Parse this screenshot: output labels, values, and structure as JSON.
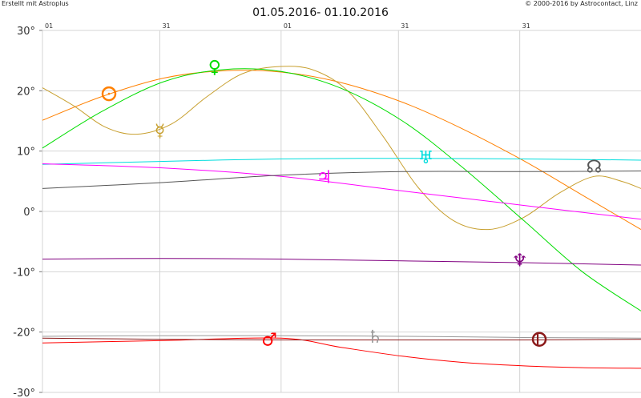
{
  "header": {
    "left_credit": "Erstellt mit Astroplus",
    "right_credit": "© 2000-2016 by Astrocontact, Linz"
  },
  "chart_data": {
    "type": "line",
    "title": "01.05.2016- 01.10.2016",
    "x_date_range": [
      "2016-05-01",
      "2016-10-01"
    ],
    "x_ticks": [
      {
        "label": "01",
        "date": "2016-05-01"
      },
      {
        "label": "31",
        "date": "2016-05-31"
      },
      {
        "label": "01",
        "date": "2016-07-01"
      },
      {
        "label": "31",
        "date": "2016-07-31"
      },
      {
        "label": "31",
        "date": "2016-08-31"
      }
    ],
    "ylim": [
      -30,
      30
    ],
    "y_ticks": [
      "30°",
      "20°",
      "10°",
      "0°",
      "-10°",
      "-20°",
      "-30°"
    ],
    "y_tick_values": [
      30,
      20,
      10,
      0,
      -10,
      -20,
      -30
    ],
    "grid": true,
    "series": [
      {
        "name": "Sun",
        "symbol": "☉",
        "color": "#ff8000",
        "points": [
          [
            "2016-05-01",
            15.1
          ],
          [
            "2016-05-16",
            19.0
          ],
          [
            "2016-06-01",
            22.1
          ],
          [
            "2016-06-16",
            23.3
          ],
          [
            "2016-07-01",
            23.1
          ],
          [
            "2016-07-16",
            21.4
          ],
          [
            "2016-08-01",
            18.1
          ],
          [
            "2016-08-16",
            13.8
          ],
          [
            "2016-09-01",
            8.4
          ],
          [
            "2016-09-16",
            2.7
          ],
          [
            "2016-10-01",
            -3.0
          ]
        ],
        "label_at": [
          "2016-05-18",
          19.5
        ]
      },
      {
        "name": "Mercury",
        "symbol": "☿",
        "color": "#c8a030",
        "points": [
          [
            "2016-05-01",
            20.5
          ],
          [
            "2016-05-09",
            17.5
          ],
          [
            "2016-05-17",
            14.0
          ],
          [
            "2016-05-25",
            12.8
          ],
          [
            "2016-06-03",
            14.5
          ],
          [
            "2016-06-12",
            19.0
          ],
          [
            "2016-06-21",
            22.8
          ],
          [
            "2016-06-30",
            24.0
          ],
          [
            "2016-07-09",
            23.5
          ],
          [
            "2016-07-18",
            20.0
          ],
          [
            "2016-07-27",
            12.5
          ],
          [
            "2016-08-05",
            4.0
          ],
          [
            "2016-08-14",
            -1.5
          ],
          [
            "2016-08-23",
            -3.0
          ],
          [
            "2016-09-01",
            -1.0
          ],
          [
            "2016-09-10",
            3.0
          ],
          [
            "2016-09-19",
            5.8
          ],
          [
            "2016-09-26",
            5.0
          ],
          [
            "2016-10-01",
            3.8
          ]
        ],
        "label_at": [
          "2016-05-31",
          13.5
        ]
      },
      {
        "name": "Venus",
        "symbol": "♀",
        "color": "#00dd00",
        "points": [
          [
            "2016-05-01",
            10.5
          ],
          [
            "2016-05-16",
            16.5
          ],
          [
            "2016-06-01",
            21.5
          ],
          [
            "2016-06-16",
            23.5
          ],
          [
            "2016-07-01",
            23.2
          ],
          [
            "2016-07-16",
            20.5
          ],
          [
            "2016-08-01",
            15.0
          ],
          [
            "2016-08-16",
            7.5
          ],
          [
            "2016-09-01",
            -1.5
          ],
          [
            "2016-09-16",
            -10.0
          ],
          [
            "2016-10-01",
            -16.5
          ]
        ],
        "label_at": [
          "2016-06-14",
          24.0
        ]
      },
      {
        "name": "Uranus",
        "symbol": "♅",
        "color": "#00dddd",
        "points": [
          [
            "2016-05-01",
            7.8
          ],
          [
            "2016-06-01",
            8.3
          ],
          [
            "2016-07-01",
            8.7
          ],
          [
            "2016-08-01",
            8.8
          ],
          [
            "2016-09-01",
            8.7
          ],
          [
            "2016-10-01",
            8.5
          ]
        ],
        "label_at": [
          "2016-08-07",
          9.0
        ]
      },
      {
        "name": "Jupiter",
        "symbol": "♃",
        "color": "#ff00ff",
        "points": [
          [
            "2016-05-01",
            7.9
          ],
          [
            "2016-06-01",
            7.2
          ],
          [
            "2016-07-01",
            5.8
          ],
          [
            "2016-08-01",
            3.4
          ],
          [
            "2016-09-01",
            1.0
          ],
          [
            "2016-10-01",
            -1.3
          ]
        ],
        "label_at": [
          "2016-07-12",
          5.8
        ]
      },
      {
        "name": "Node",
        "symbol": "☊",
        "color": "#555555",
        "points": [
          [
            "2016-05-01",
            3.8
          ],
          [
            "2016-06-01",
            4.8
          ],
          [
            "2016-07-01",
            6.0
          ],
          [
            "2016-08-01",
            6.6
          ],
          [
            "2016-09-01",
            6.6
          ],
          [
            "2016-10-01",
            6.7
          ]
        ],
        "label_at": [
          "2016-09-19",
          7.5
        ]
      },
      {
        "name": "Neptune",
        "symbol": "♆",
        "color": "#800080",
        "points": [
          [
            "2016-05-01",
            -7.9
          ],
          [
            "2016-06-01",
            -7.8
          ],
          [
            "2016-07-01",
            -7.9
          ],
          [
            "2016-08-01",
            -8.2
          ],
          [
            "2016-09-01",
            -8.5
          ],
          [
            "2016-10-01",
            -8.9
          ]
        ],
        "label_at": [
          "2016-08-31",
          -8.0
        ]
      },
      {
        "name": "Saturn",
        "symbol": "♄",
        "color": "#999999",
        "points": [
          [
            "2016-05-01",
            -20.7
          ],
          [
            "2016-06-01",
            -20.6
          ],
          [
            "2016-07-01",
            -20.6
          ],
          [
            "2016-08-01",
            -20.7
          ],
          [
            "2016-09-01",
            -20.9
          ],
          [
            "2016-10-01",
            -21.0
          ]
        ],
        "label_at": [
          "2016-07-25",
          -20.7
        ]
      },
      {
        "name": "Mars",
        "symbol": "♂",
        "color": "#ff0000",
        "points": [
          [
            "2016-05-01",
            -21.8
          ],
          [
            "2016-06-01",
            -21.4
          ],
          [
            "2016-07-01",
            -21.0
          ],
          [
            "2016-07-16",
            -22.5
          ],
          [
            "2016-08-01",
            -24.0
          ],
          [
            "2016-08-16",
            -25.0
          ],
          [
            "2016-09-01",
            -25.6
          ],
          [
            "2016-09-16",
            -25.9
          ],
          [
            "2016-10-01",
            -26.0
          ]
        ],
        "label_at": [
          "2016-06-28",
          -21.2
        ]
      },
      {
        "name": "Pluto",
        "symbol": "♇",
        "color": "#8b1a1a",
        "points": [
          [
            "2016-05-01",
            -21.0
          ],
          [
            "2016-06-01",
            -21.2
          ],
          [
            "2016-07-01",
            -21.3
          ],
          [
            "2016-08-01",
            -21.3
          ],
          [
            "2016-09-01",
            -21.3
          ],
          [
            "2016-10-01",
            -21.2
          ]
        ],
        "label_at": [
          "2016-09-05",
          -21.2
        ]
      }
    ]
  }
}
